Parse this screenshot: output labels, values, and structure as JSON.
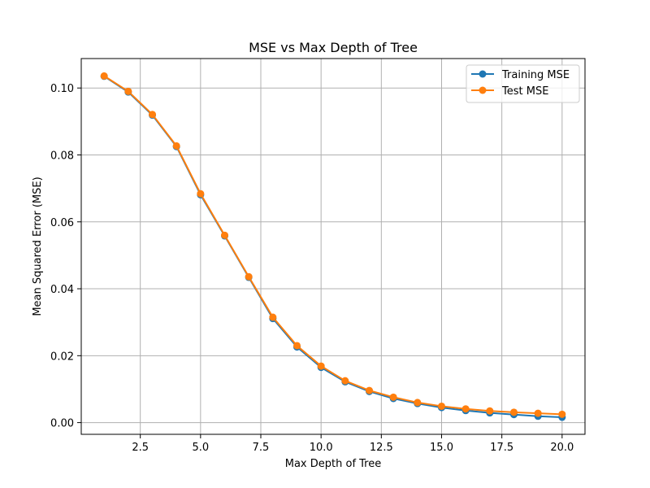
{
  "chart_data": {
    "type": "line",
    "title": "MSE vs Max Depth of Tree",
    "xlabel": "Max Depth of Tree",
    "ylabel": "Mean Squared Error (MSE)",
    "xlim": [
      0.05,
      20.95
    ],
    "ylim": [
      -0.0035,
      0.1088
    ],
    "xticks": [
      2.5,
      5.0,
      7.5,
      10.0,
      12.5,
      15.0,
      17.5,
      20.0
    ],
    "xtick_labels": [
      "2.5",
      "5.0",
      "7.5",
      "10.0",
      "12.5",
      "15.0",
      "17.5",
      "20.0"
    ],
    "yticks": [
      0.0,
      0.02,
      0.04,
      0.06,
      0.08,
      0.1
    ],
    "ytick_labels": [
      "0.00",
      "0.02",
      "0.04",
      "0.06",
      "0.08",
      "0.10"
    ],
    "grid": true,
    "legend_position": "top-right",
    "x": [
      1,
      2,
      3,
      4,
      5,
      6,
      7,
      8,
      9,
      10,
      11,
      12,
      13,
      14,
      15,
      16,
      17,
      18,
      19,
      20
    ],
    "series": [
      {
        "name": "Training MSE",
        "color": "#1f77b4",
        "marker": "circle",
        "values": [
          0.1035,
          0.0988,
          0.0919,
          0.0825,
          0.0681,
          0.0558,
          0.0434,
          0.0311,
          0.0226,
          0.0165,
          0.0122,
          0.0093,
          0.0072,
          0.0057,
          0.0045,
          0.0036,
          0.0029,
          0.0024,
          0.0019,
          0.0016
        ]
      },
      {
        "name": "Test MSE",
        "color": "#ff7f0e",
        "marker": "circle",
        "values": [
          0.1036,
          0.099,
          0.0921,
          0.0827,
          0.0684,
          0.056,
          0.0436,
          0.0315,
          0.023,
          0.0169,
          0.0125,
          0.0096,
          0.0076,
          0.006,
          0.0049,
          0.0041,
          0.0035,
          0.0031,
          0.0028,
          0.0025
        ]
      }
    ]
  }
}
